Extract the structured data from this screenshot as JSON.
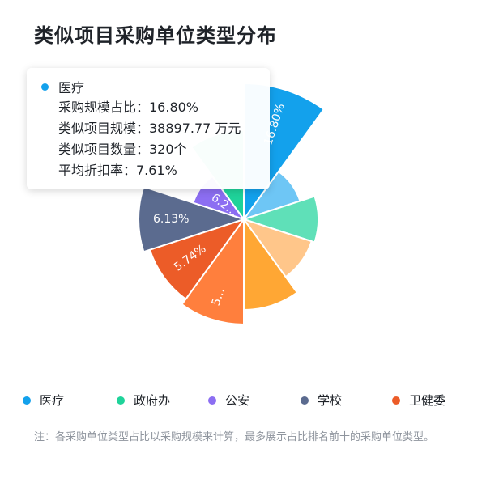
{
  "title": "类似项目采购单位类型分布",
  "chart_data": {
    "type": "rose-pie",
    "segments": [
      {
        "name": "医疗",
        "value": 16.8,
        "label": "16.80%",
        "color": "#13a1ec"
      },
      {
        "name": "",
        "value": 6.4,
        "label": "",
        "color": "#6ec6f5"
      },
      {
        "name": "",
        "value": 6.3,
        "label": "",
        "color": "#5fe0b8"
      },
      {
        "name": "",
        "value": 6.1,
        "label": "",
        "color": "#ffc68a"
      },
      {
        "name": "",
        "value": 6.0,
        "label": "",
        "color": "#ffa734"
      },
      {
        "name": "",
        "value": 5.6,
        "label": "5...",
        "color": "#ff7f3d"
      },
      {
        "name": "卫健委",
        "value": 5.74,
        "label": "5.74%",
        "color": "#ec5c28"
      },
      {
        "name": "学校",
        "value": 6.13,
        "label": "6.13%",
        "color": "#5b6b8f"
      },
      {
        "name": "公安",
        "value": 6.2,
        "label": "6.2…",
        "color": "#8c6ef2"
      },
      {
        "name": "政府办",
        "value": 6.5,
        "label": "",
        "color": "#1fd39a"
      }
    ]
  },
  "tooltip": {
    "name": "医疗",
    "color": "#13a1ec",
    "rows": [
      "采购规模占比：16.80%",
      "类似项目规模：38897.77 万元",
      "类似项目数量：320个",
      "平均折扣率：7.61%"
    ]
  },
  "legend": [
    {
      "label": "医疗",
      "color": "#13a1ec"
    },
    {
      "label": "政府办",
      "color": "#1fd39a"
    },
    {
      "label": "公安",
      "color": "#8c6ef2"
    },
    {
      "label": "学校",
      "color": "#5b6b8f"
    },
    {
      "label": "卫健委",
      "color": "#ec5c28"
    }
  ],
  "note": "注：各采购单位类型占比以采购规模来计算，最多展示占比排名前十的采购单位类型。"
}
